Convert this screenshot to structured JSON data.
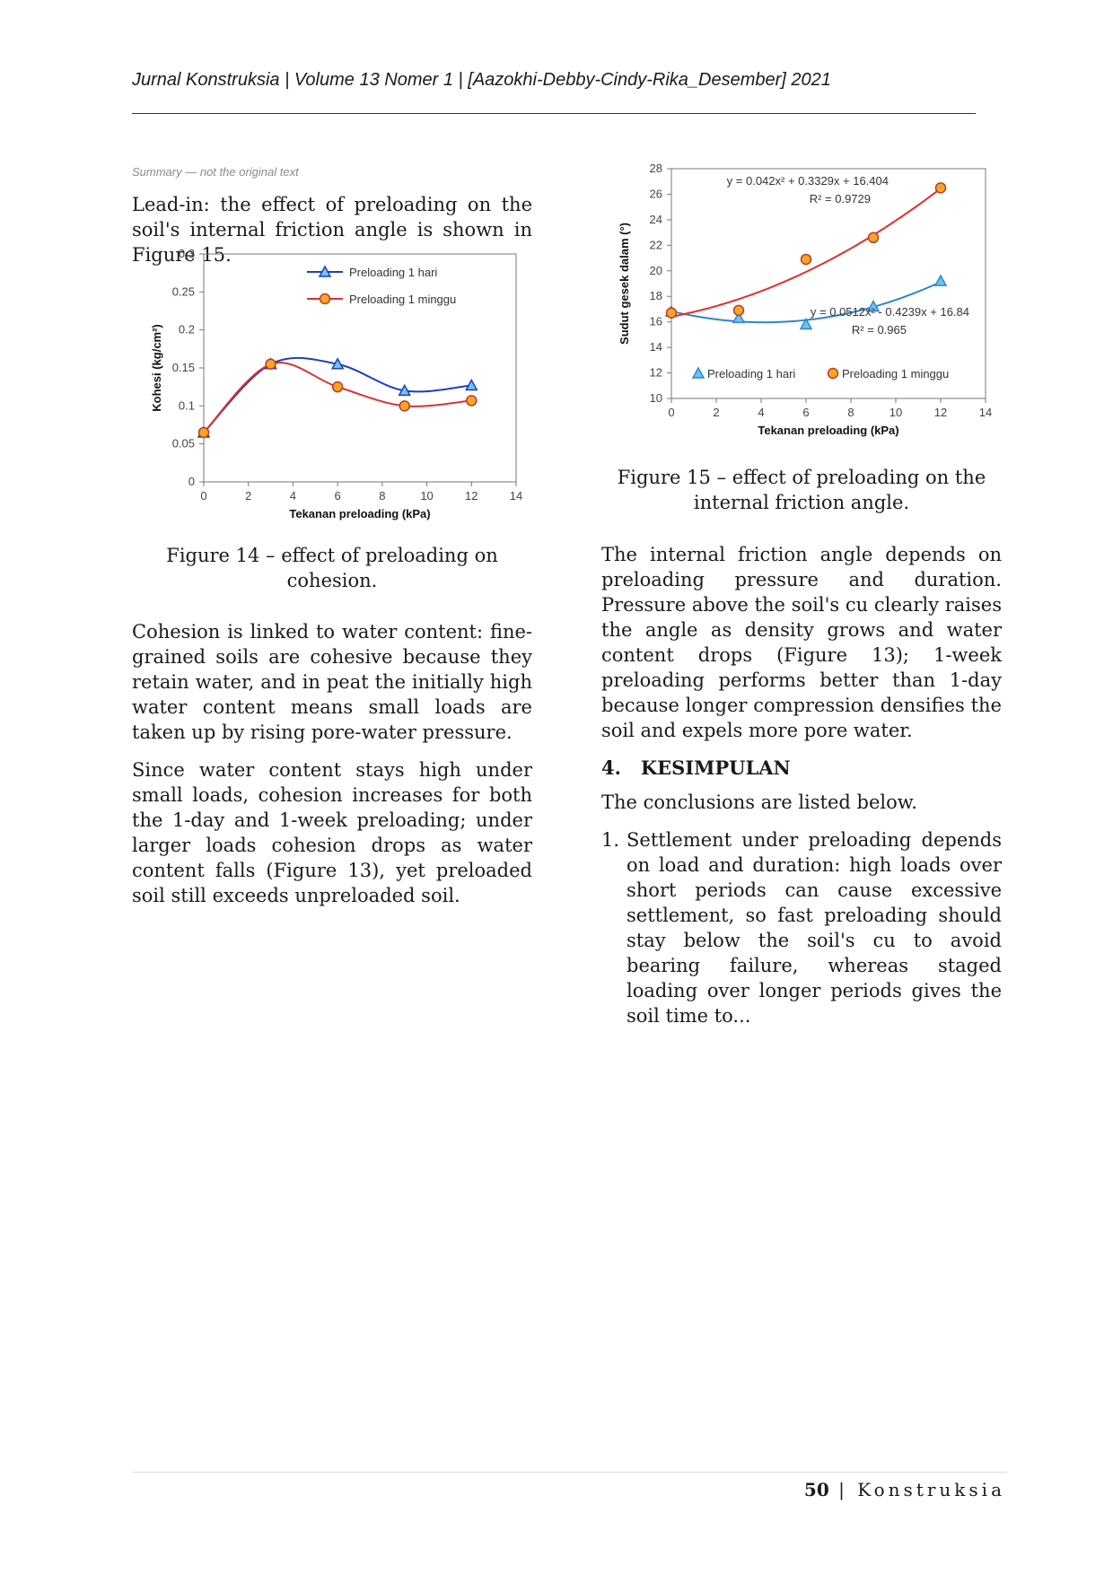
{
  "header": {
    "running_title": "Jurnal Konstruksia | Volume 13 Nomer 1 | [Aazokhi-Debby-Cindy-Rika_Desember] 2021"
  },
  "notice": "Summary — not the original text",
  "left_column": {
    "intro_summary": "Lead-in: the effect of preloading on the soil's internal friction angle is shown in Figure 15.",
    "para1_summary": "Cohesion is linked to water content: fine-grained soils are cohesive because they retain water, and in peat the initially high water content means small loads are taken up by rising pore-water pressure.",
    "para2_summary": "Since water content stays high under small loads, cohesion increases for both the 1-day and 1-week preloading; under larger loads cohesion drops as water content falls (Figure 13), yet preloaded soil still exceeds unpreloaded soil."
  },
  "right_column": {
    "para1_summary": "The internal friction angle depends on preloading pressure and duration. Pressure above the soil's cu clearly raises the angle as density grows and water content drops (Figure 13); 1-week preloading performs better than 1-day because longer compression densifies the soil and expels more pore water.",
    "section_number": "4.",
    "section_title": "KESIMPULAN",
    "section_intro_summary": "The conclusions are listed below.",
    "item_number": "1.",
    "item1_summary": "Settlement under preloading depends on load and duration: high loads over short periods can cause excessive settlement, so fast preloading should stay below the soil's cu to avoid bearing failure, whereas staged loading over longer periods gives the soil time to..."
  },
  "figure14": {
    "caption_summary": "Figure 14 – effect of preloading on cohesion.",
    "chart_data": {
      "type": "line",
      "xlabel": "Tekanan preloading (kPa)",
      "ylabel": "Kohesi (kg/cm²)",
      "xlim": [
        0,
        14
      ],
      "ylim": [
        0,
        0.3
      ],
      "xticks": [
        "0",
        "2",
        "4",
        "6",
        "8",
        "10",
        "12",
        "14"
      ],
      "yticks": [
        "0",
        "0.05",
        "0.1",
        "0.15",
        "0.2",
        "0.25",
        "0.3"
      ],
      "legend_position": "top-center",
      "series": [
        {
          "name": "Preloading 1 hari",
          "color": "#1f3fbf",
          "marker": "triangle",
          "x": [
            0,
            3,
            6,
            9,
            12
          ],
          "y": [
            0.065,
            0.155,
            0.155,
            0.12,
            0.127
          ]
        },
        {
          "name": "Preloading 1 minggu",
          "color": "#e0302a",
          "marker": "circle",
          "x": [
            0,
            3,
            6,
            9,
            12
          ],
          "y": [
            0.065,
            0.155,
            0.125,
            0.1,
            0.107
          ]
        }
      ]
    }
  },
  "figure15": {
    "caption_summary": "Figure 15 – effect of preloading on the internal friction angle.",
    "chart_data": {
      "type": "scatter",
      "xlabel": "Tekanan preloading (kPa)",
      "ylabel": "Sudut gesek dalam (°)",
      "xlim": [
        0,
        14
      ],
      "ylim": [
        10,
        28
      ],
      "xticks": [
        "0",
        "2",
        "4",
        "6",
        "8",
        "10",
        "12",
        "14"
      ],
      "yticks": [
        "10",
        "12",
        "14",
        "16",
        "18",
        "20",
        "22",
        "24",
        "26",
        "28"
      ],
      "legend_position": "bottom",
      "series": [
        {
          "name": "Preloading 1 hari",
          "color": "#2e86c9",
          "marker": "triangle",
          "x": [
            0,
            3,
            6,
            9,
            12
          ],
          "y": [
            16.8,
            16.3,
            15.8,
            17.2,
            19.2
          ],
          "trendline": {
            "a": 0.0512,
            "b": -0.4239,
            "c": 16.84
          },
          "equation": "y = 0.0512x² - 0.4239x + 16.84",
          "r2": "R² = 0.965"
        },
        {
          "name": "Preloading 1 minggu",
          "color": "#e0302a",
          "marker": "circle",
          "x": [
            0,
            3,
            6,
            9,
            12
          ],
          "y": [
            16.7,
            16.9,
            20.9,
            22.6,
            26.5
          ],
          "trendline": {
            "a": 0.042,
            "b": 0.3329,
            "c": 16.404
          },
          "equation": "y = 0.042x² + 0.3329x + 16.404",
          "r2": "R² = 0.9729"
        }
      ]
    }
  },
  "footer": {
    "page_number": "50",
    "separator": " | ",
    "journal": "Konstruksia"
  }
}
